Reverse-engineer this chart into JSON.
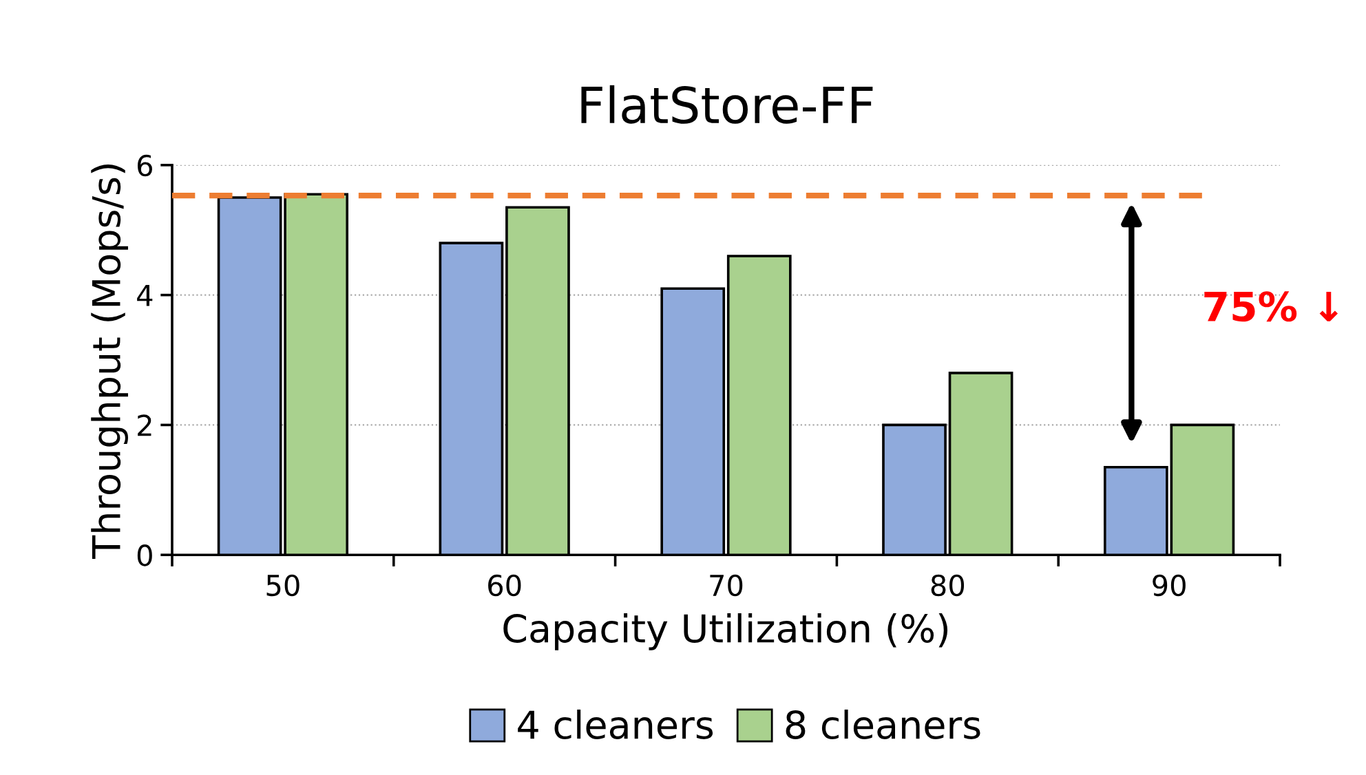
{
  "chart_data": {
    "type": "bar",
    "title": "FlatStore-FF",
    "xlabel": "Capacity Utilization (%)",
    "ylabel": "Throughput (Mops/s)",
    "categories": [
      "50",
      "60",
      "70",
      "80",
      "90"
    ],
    "series": [
      {
        "name": "4 cleaners",
        "color": "#8faadc",
        "values": [
          5.5,
          4.8,
          4.1,
          2.0,
          1.35
        ]
      },
      {
        "name": "8 cleaners",
        "color": "#a9d18e",
        "values": [
          5.55,
          5.35,
          4.6,
          2.8,
          2.0
        ]
      }
    ],
    "ylim": [
      0,
      6
    ],
    "yticks": [
      0,
      2,
      4,
      6
    ],
    "grid": "y",
    "legend": "bottom",
    "ref_lines": [
      {
        "axis": "y",
        "value": 5.53,
        "label": null,
        "color": "#ed7d31",
        "line_style": "dashed"
      }
    ],
    "annotations": [
      "75% ↓"
    ]
  }
}
